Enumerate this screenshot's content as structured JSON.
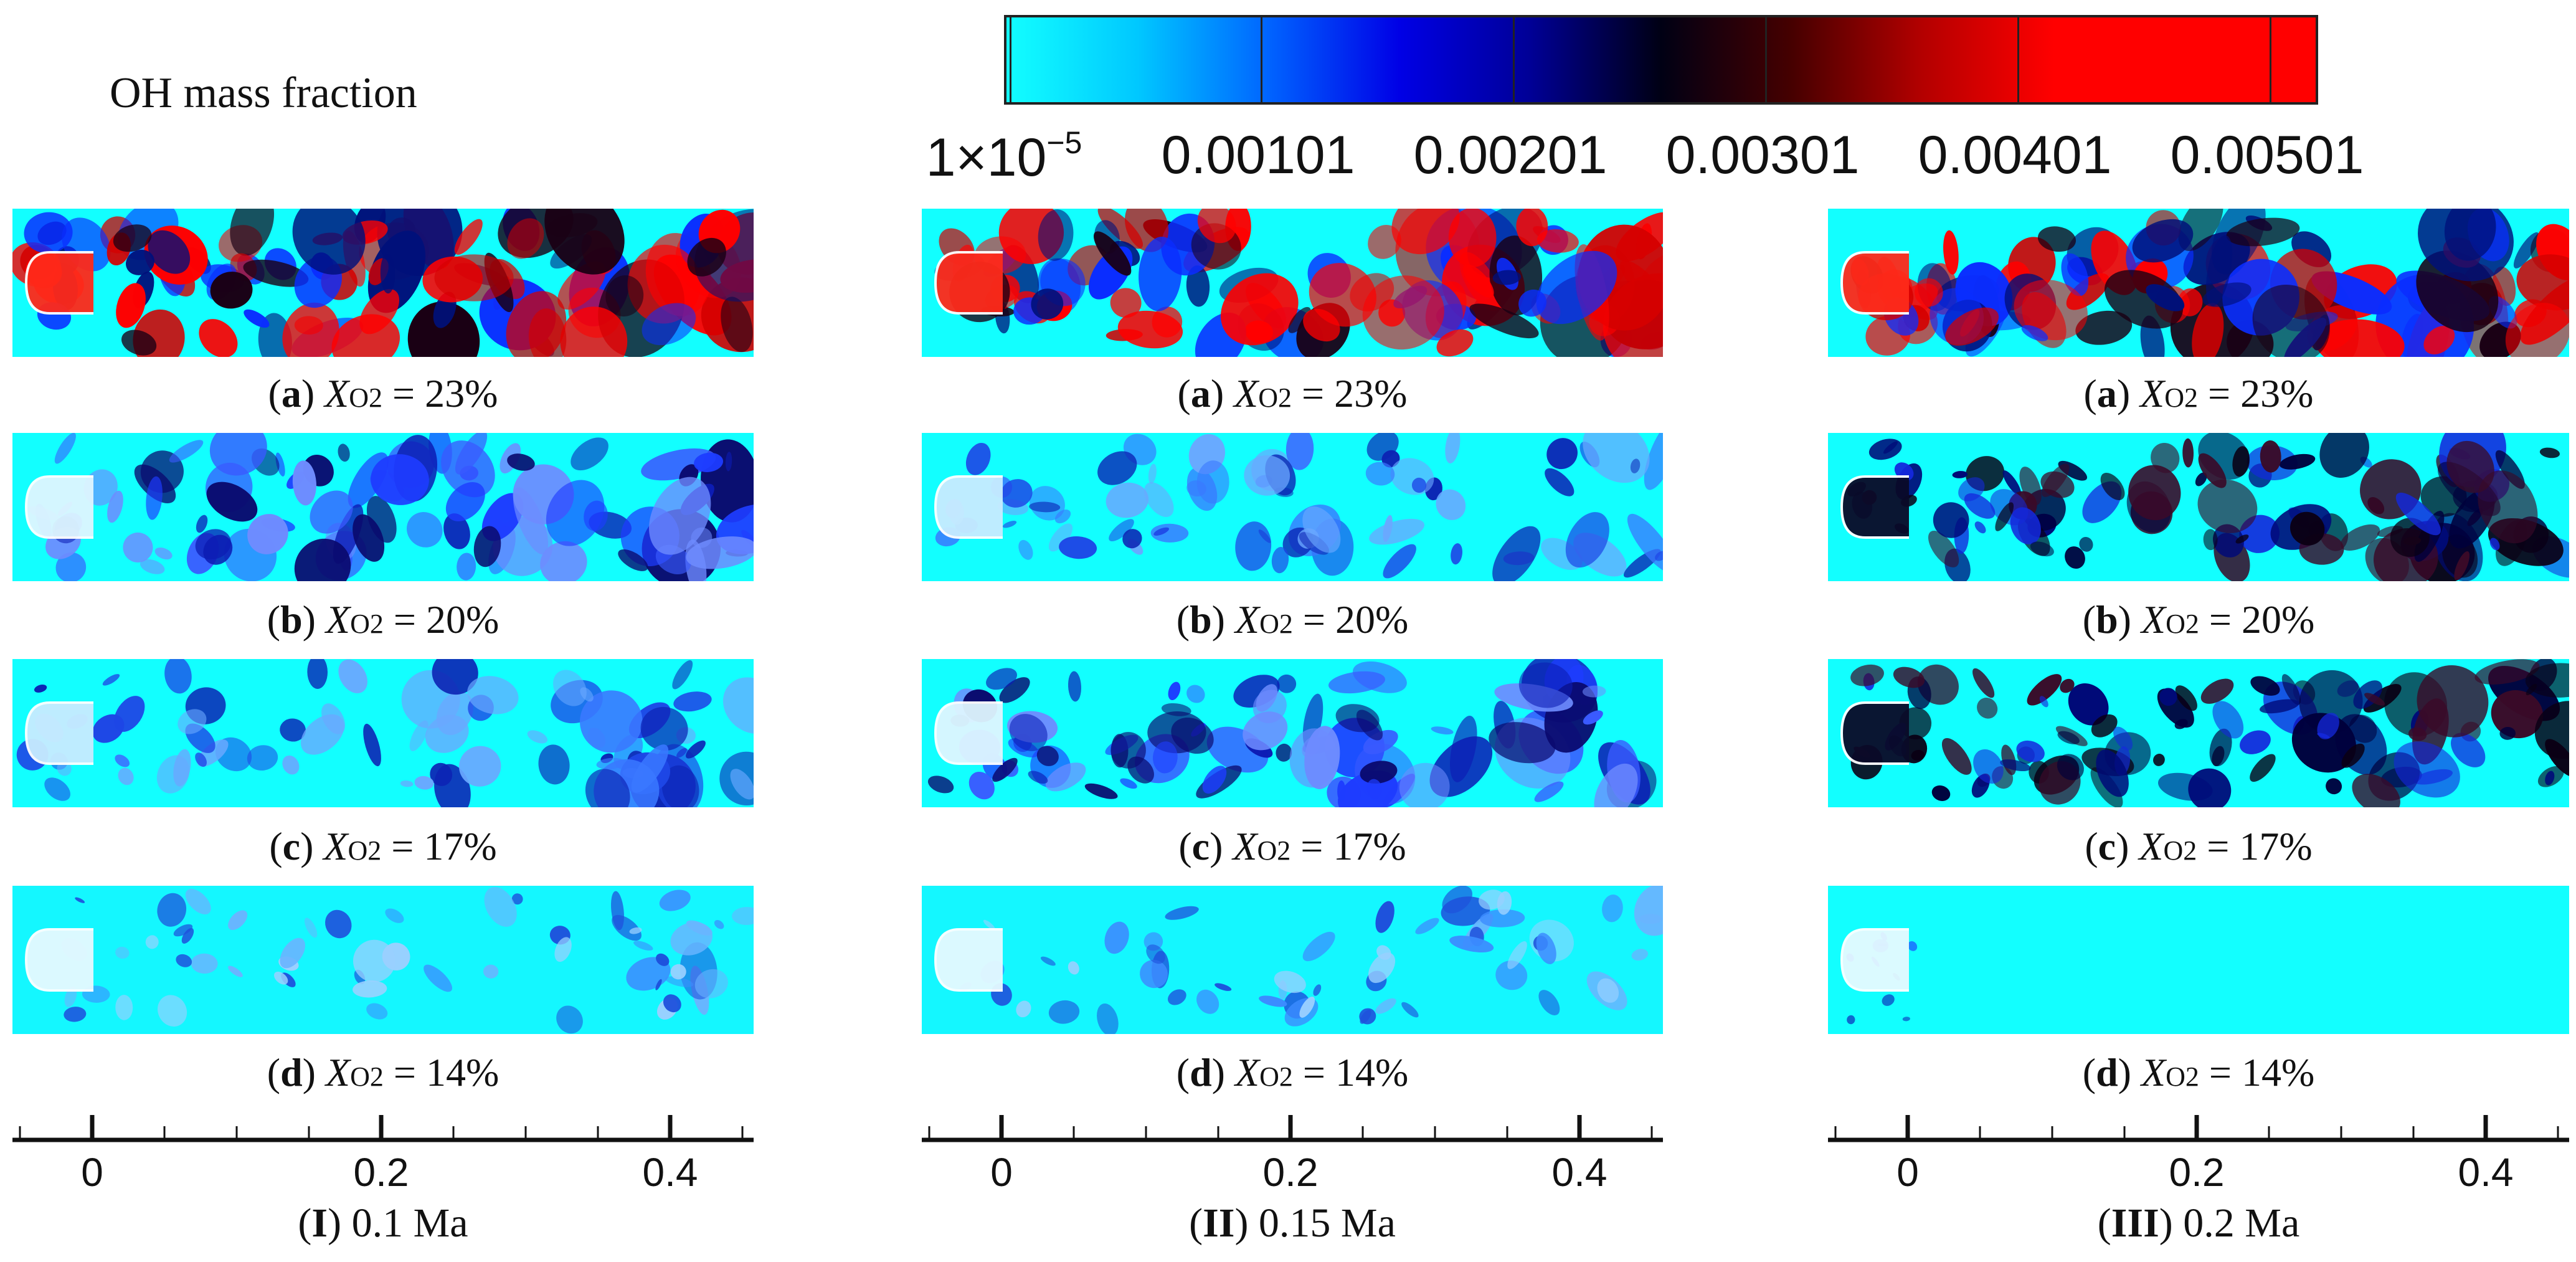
{
  "figure": {
    "title": "OH mass fraction",
    "colorbar": {
      "labels": [
        "0.00101",
        "0.00201",
        "0.00301",
        "0.00401",
        "0.00501"
      ],
      "first_label_base": "1×10",
      "first_label_exp": "−5",
      "colors": [
        "#12ffff",
        "#0064ff",
        "#000096",
        "#000014",
        "#b40000",
        "#ff0000"
      ]
    },
    "columns": [
      {
        "roman": "I",
        "speed": "0.1 Ma",
        "axis_ticks": [
          "0",
          "0.2",
          "0.4"
        ],
        "rows": [
          {
            "letter": "a",
            "x": "X",
            "sub": "O2",
            "value": "= 23%",
            "intensity": "red"
          },
          {
            "letter": "b",
            "x": "X",
            "sub": "O2",
            "value": "= 20%",
            "intensity": "blue"
          },
          {
            "letter": "c",
            "x": "X",
            "sub": "O2",
            "value": "= 17%",
            "intensity": "light"
          },
          {
            "letter": "d",
            "x": "X",
            "sub": "O2",
            "value": "= 14%",
            "intensity": "faint"
          }
        ]
      },
      {
        "roman": "II",
        "speed": "0.15 Ma",
        "axis_ticks": [
          "0",
          "0.2",
          "0.4"
        ],
        "rows": [
          {
            "letter": "a",
            "x": "X",
            "sub": "O2",
            "value": "= 23%",
            "intensity": "red"
          },
          {
            "letter": "b",
            "x": "X",
            "sub": "O2",
            "value": "= 20%",
            "intensity": "light"
          },
          {
            "letter": "c",
            "x": "X",
            "sub": "O2",
            "value": "= 17%",
            "intensity": "blue"
          },
          {
            "letter": "d",
            "x": "X",
            "sub": "O2",
            "value": "= 14%",
            "intensity": "faint"
          }
        ]
      },
      {
        "roman": "III",
        "speed": "0.2 Ma",
        "axis_ticks": [
          "0",
          "0.2",
          "0.4"
        ],
        "rows": [
          {
            "letter": "a",
            "x": "X",
            "sub": "O2",
            "value": "= 23%",
            "intensity": "red"
          },
          {
            "letter": "b",
            "x": "X",
            "sub": "O2",
            "value": "= 20%",
            "intensity": "dark"
          },
          {
            "letter": "c",
            "x": "X",
            "sub": "O2",
            "value": "= 17%",
            "intensity": "dark"
          },
          {
            "letter": "d",
            "x": "X",
            "sub": "O2",
            "value": "= 14%",
            "intensity": "extinct"
          }
        ]
      }
    ]
  }
}
